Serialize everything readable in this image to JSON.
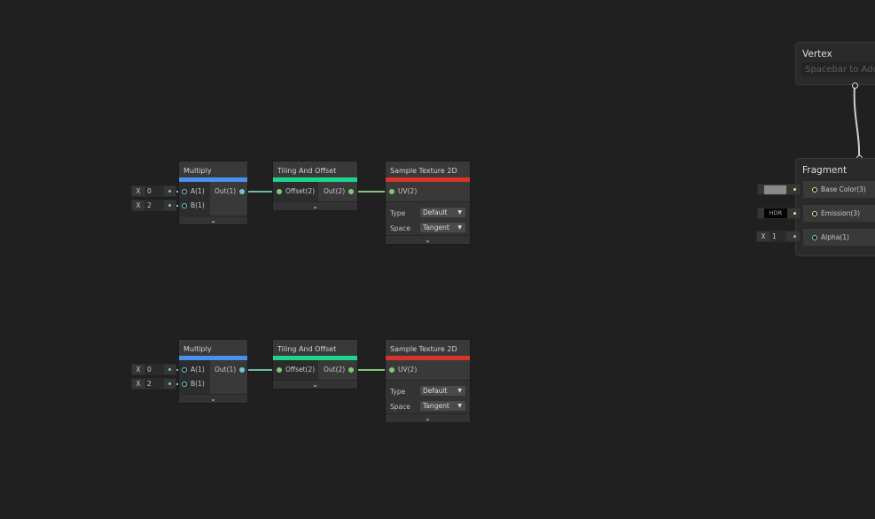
{
  "rows": [
    {
      "multiply": {
        "title": "Multiply",
        "a_label": "A(1)",
        "b_label": "B(1)",
        "out_label": "Out(1)",
        "a_axis": "X",
        "a_value": "0",
        "b_axis": "X",
        "b_value": "2"
      },
      "tiling": {
        "title": "Tiling And Offset",
        "in_label": "Offset(2)",
        "out_label": "Out(2)"
      },
      "sample": {
        "title": "Sample Texture 2D",
        "uv_label": "UV(2)",
        "type_label": "Type",
        "type_value": "Default",
        "space_label": "Space",
        "space_value": "Tangent"
      }
    },
    {
      "multiply": {
        "title": "Multiply",
        "a_label": "A(1)",
        "b_label": "B(1)",
        "out_label": "Out(1)",
        "a_axis": "X",
        "a_value": "0",
        "b_axis": "X",
        "b_value": "2"
      },
      "tiling": {
        "title": "Tiling And Offset",
        "in_label": "Offset(2)",
        "out_label": "Out(2)"
      },
      "sample": {
        "title": "Sample Texture 2D",
        "uv_label": "UV(2)",
        "type_label": "Type",
        "type_value": "Default",
        "space_label": "Space",
        "space_value": "Tangent"
      }
    }
  ],
  "vertex": {
    "title": "Vertex",
    "placeholder": "Spacebar to Add"
  },
  "fragment": {
    "title": "Fragment",
    "base_color": "Base Color(3)",
    "emission": "Emission(3)",
    "emission_value": "HDR",
    "alpha": "Alpha(1)",
    "alpha_axis": "X",
    "alpha_value": "1",
    "base_color_swatch": "#8a8a8a"
  },
  "colors": {
    "multiply": "#4b8ff0",
    "tiling": "#1ed38a",
    "sample": "#d8322a",
    "float_wire": "#75c4d0",
    "vector2_wire": "#80c878",
    "vector3_wire": "#e2e28a"
  }
}
